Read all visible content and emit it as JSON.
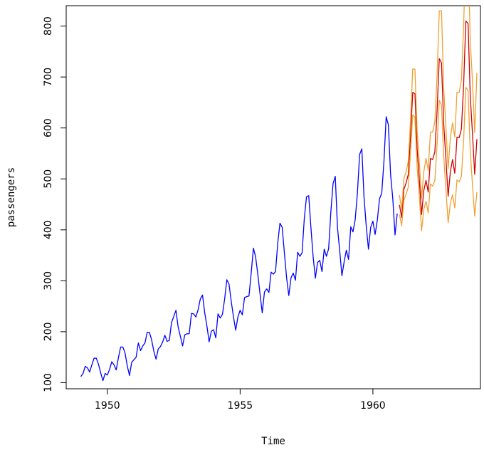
{
  "chart_data": {
    "type": "line",
    "title": "",
    "xlabel": "Time",
    "ylabel": "passengers",
    "xlim": [
      1948.45,
      1964.05
    ],
    "ylim": [
      88,
      840
    ],
    "x_ticks": [
      1950,
      1955,
      1960
    ],
    "y_ticks": [
      100,
      200,
      300,
      400,
      500,
      600,
      700,
      800
    ],
    "grid": false,
    "legend": "none",
    "series": [
      {
        "role": "observed",
        "color": "#0000ff",
        "x_start": 1949,
        "x_step": 0.083333,
        "values": [
          112,
          118,
          132,
          129,
          121,
          135,
          148,
          148,
          136,
          119,
          104,
          118,
          115,
          126,
          141,
          135,
          125,
          149,
          170,
          170,
          158,
          133,
          114,
          140,
          145,
          150,
          178,
          163,
          172,
          178,
          199,
          199,
          184,
          162,
          146,
          166,
          171,
          180,
          193,
          181,
          183,
          218,
          230,
          242,
          209,
          191,
          172,
          194,
          196,
          196,
          236,
          235,
          229,
          243,
          264,
          272,
          237,
          211,
          180,
          201,
          204,
          188,
          235,
          227,
          234,
          264,
          302,
          293,
          259,
          229,
          203,
          229,
          242,
          233,
          267,
          269,
          270,
          315,
          364,
          347,
          312,
          274,
          237,
          278,
          284,
          277,
          317,
          313,
          318,
          374,
          413,
          405,
          355,
          306,
          271,
          306,
          315,
          301,
          356,
          348,
          355,
          422,
          465,
          467,
          404,
          347,
          305,
          336,
          340,
          318,
          362,
          348,
          363,
          435,
          491,
          505,
          404,
          359,
          310,
          337,
          360,
          342,
          406,
          396,
          420,
          472,
          548,
          559,
          463,
          407,
          362,
          405,
          417,
          391,
          419,
          461,
          472,
          535,
          622,
          606,
          508,
          461,
          390,
          432
        ]
      },
      {
        "role": "forecast",
        "color": "#cc0000",
        "x_start": 1961,
        "x_step": 0.083333,
        "values": [
          449,
          424,
          479,
          492,
          509,
          583,
          670,
          667,
          558,
          497,
          430,
          477,
          497,
          474,
          540,
          538,
          553,
          633,
          736,
          728,
          608,
          539,
          466,
          514,
          538,
          511,
          582,
          581,
          598,
          684,
          810,
          805,
          662,
          589,
          509,
          578
        ]
      },
      {
        "role": "lower-bound",
        "color": "#f0a030",
        "x_start": 1961,
        "x_step": 0.083333,
        "values": [
          430,
          408,
          458,
          470,
          484,
          553,
          626,
          621,
          522,
          465,
          398,
          440,
          456,
          433,
          490,
          486,
          497,
          566,
          654,
          645,
          543,
          479,
          414,
          452,
          469,
          443,
          498,
          494,
          505,
          576,
          680,
          673,
          554,
          488,
          427,
          474
        ]
      },
      {
        "role": "upper-bound",
        "color": "#f0a030",
        "x_start": 1961,
        "x_step": 0.083333,
        "values": [
          468,
          440,
          500,
          514,
          535,
          613,
          716,
          715,
          594,
          530,
          462,
          514,
          540,
          517,
          592,
          592,
          612,
          703,
          830,
          830,
          678,
          601,
          520,
          580,
          610,
          582,
          670,
          670,
          694,
          800,
          950,
          945,
          771,
          692,
          591,
          708
        ]
      }
    ]
  }
}
